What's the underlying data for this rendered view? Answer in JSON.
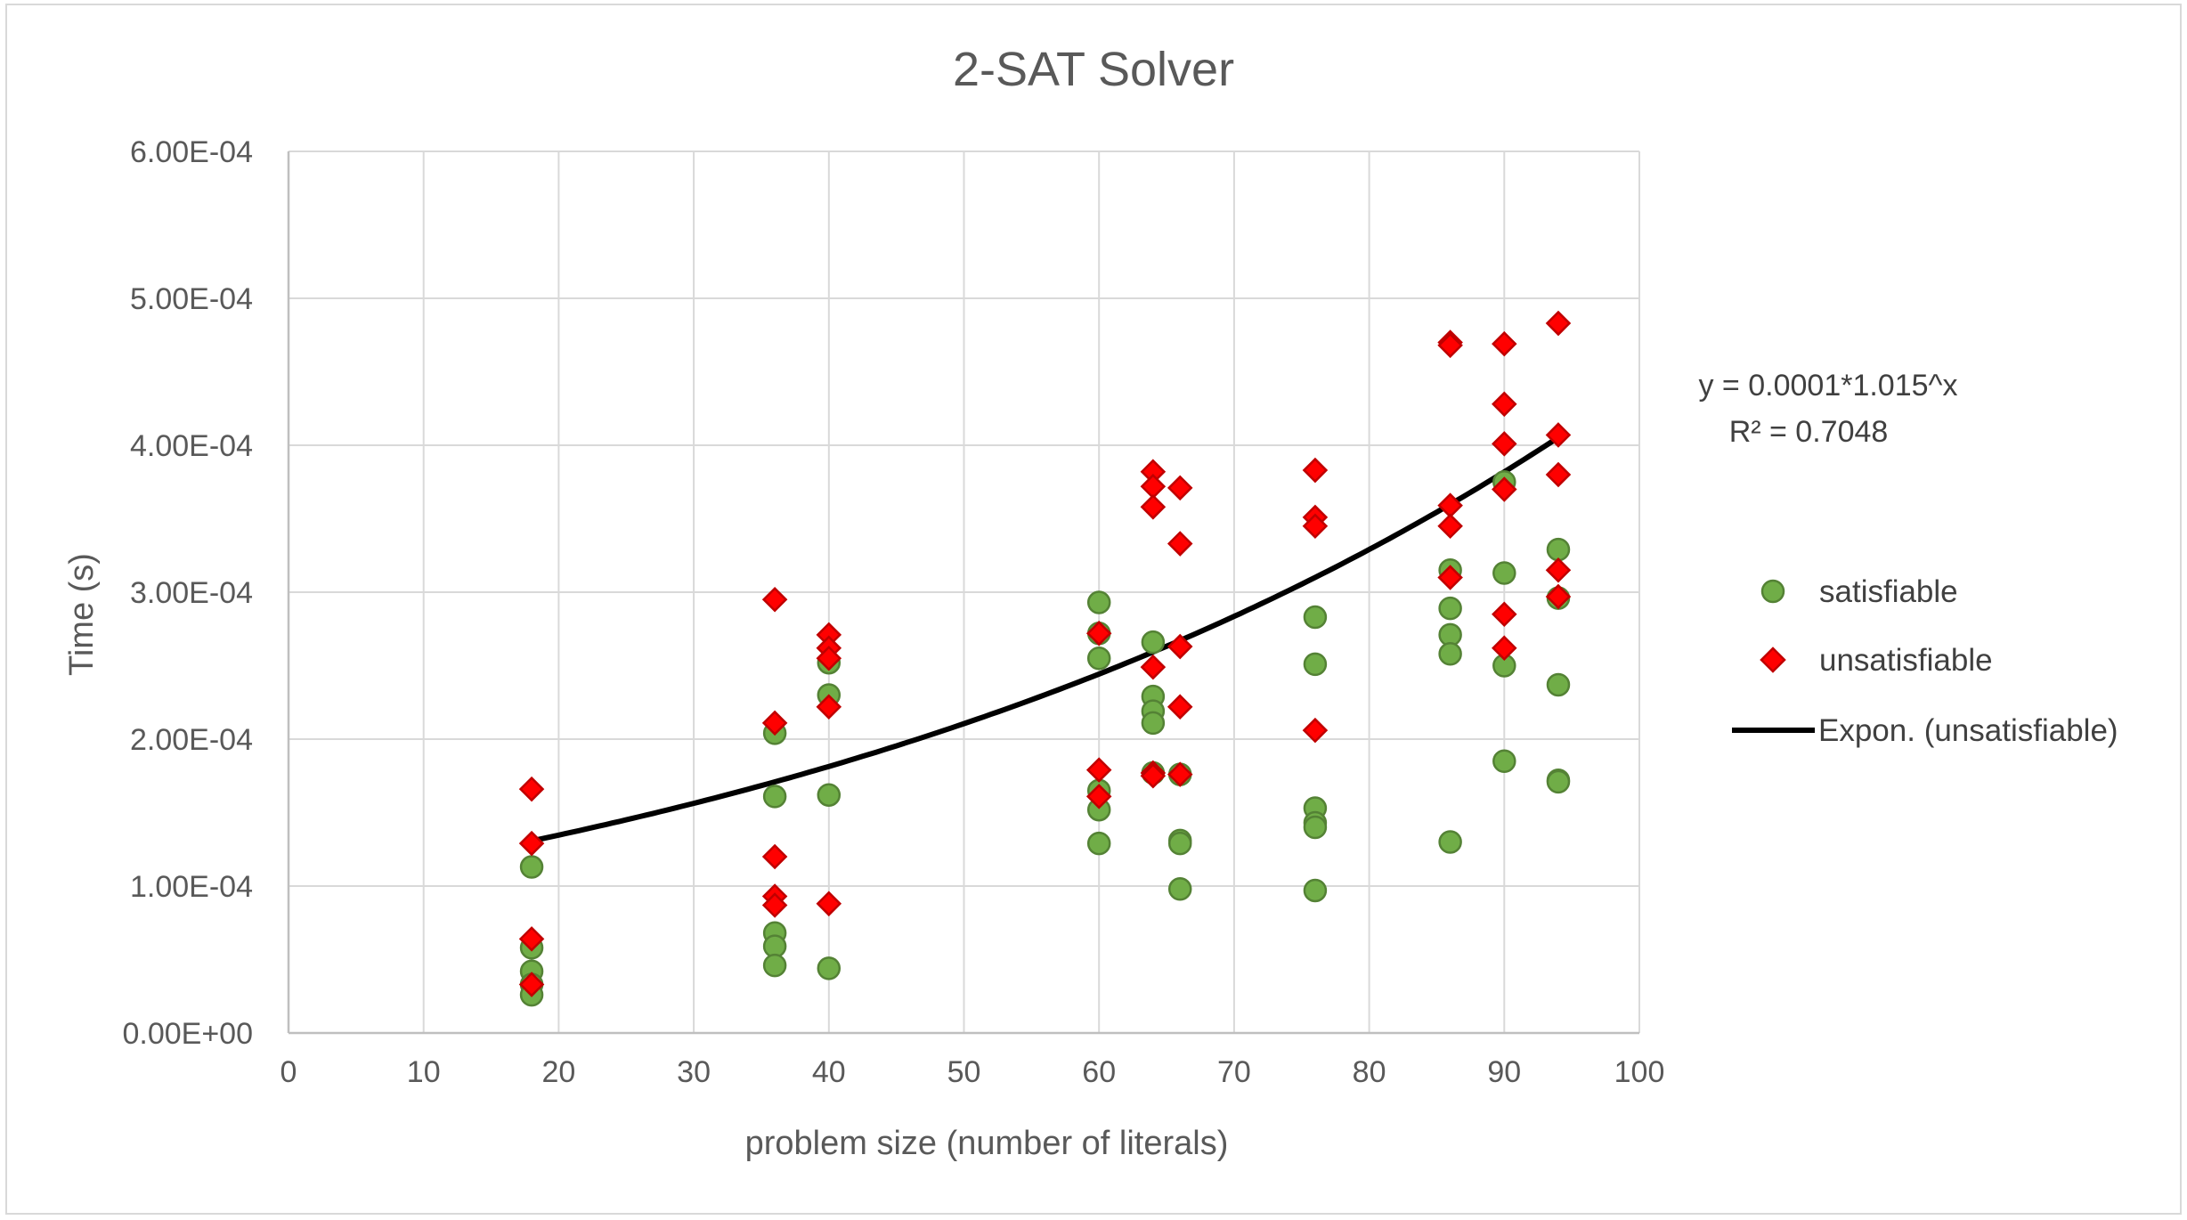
{
  "chart_data": {
    "type": "scatter",
    "title": "2-SAT Solver",
    "xlabel": "problem size (number of literals)",
    "ylabel": "Time (s)",
    "xlim": [
      0,
      100
    ],
    "ylim": [
      0,
      0.0006
    ],
    "x_ticks": [
      0,
      10,
      20,
      30,
      40,
      50,
      60,
      70,
      80,
      90,
      100
    ],
    "x_tick_labels": [
      "0",
      "10",
      "20",
      "30",
      "40",
      "50",
      "60",
      "70",
      "80",
      "90",
      "100"
    ],
    "y_ticks": [
      0,
      0.0001,
      0.0002,
      0.0003,
      0.0004,
      0.0005,
      0.0006
    ],
    "y_tick_labels": [
      "0.00E+00",
      "1.00E-04",
      "2.00E-04",
      "3.00E-04",
      "4.00E-04",
      "5.00E-04",
      "6.00E-04"
    ],
    "grid": true,
    "legend_position": "right",
    "series": [
      {
        "name": "satisfiable",
        "marker": "circle",
        "color": "#70ad47",
        "edge_color": "#548235",
        "points": [
          [
            18,
            0.000113
          ],
          [
            18,
            5.8e-05
          ],
          [
            18,
            4.2e-05
          ],
          [
            18,
            3.3e-05
          ],
          [
            18,
            2.6e-05
          ],
          [
            36,
            0.000204
          ],
          [
            36,
            0.000161
          ],
          [
            36,
            6.8e-05
          ],
          [
            36,
            5.9e-05
          ],
          [
            36,
            4.6e-05
          ],
          [
            40,
            0.000252
          ],
          [
            40,
            0.00023
          ],
          [
            40,
            0.000162
          ],
          [
            40,
            4.4e-05
          ],
          [
            60,
            0.000293
          ],
          [
            60,
            0.000272
          ],
          [
            60,
            0.000255
          ],
          [
            60,
            0.000165
          ],
          [
            60,
            0.000152
          ],
          [
            60,
            0.000129
          ],
          [
            64,
            0.000266
          ],
          [
            64,
            0.000229
          ],
          [
            64,
            0.000219
          ],
          [
            64,
            0.000211
          ],
          [
            64,
            0.000177
          ],
          [
            66,
            0.000176
          ],
          [
            66,
            0.000131
          ],
          [
            66,
            0.000129
          ],
          [
            66,
            9.8e-05
          ],
          [
            76,
            0.000283
          ],
          [
            76,
            0.000251
          ],
          [
            76,
            0.000153
          ],
          [
            76,
            0.000143
          ],
          [
            76,
            0.00014
          ],
          [
            76,
            9.7e-05
          ],
          [
            86,
            0.000315
          ],
          [
            86,
            0.000289
          ],
          [
            86,
            0.000271
          ],
          [
            86,
            0.000258
          ],
          [
            86,
            0.00013
          ],
          [
            90,
            0.000375
          ],
          [
            90,
            0.000313
          ],
          [
            90,
            0.00025
          ],
          [
            90,
            0.000185
          ],
          [
            94,
            0.000329
          ],
          [
            94,
            0.000296
          ],
          [
            94,
            0.000237
          ],
          [
            94,
            0.000172
          ],
          [
            94,
            0.000171
          ]
        ]
      },
      {
        "name": "unsatisfiable",
        "marker": "diamond",
        "color": "#ff0000",
        "edge_color": "#c00000",
        "points": [
          [
            18,
            0.000166
          ],
          [
            18,
            0.000129
          ],
          [
            18,
            6.4e-05
          ],
          [
            18,
            3.3e-05
          ],
          [
            36,
            0.000295
          ],
          [
            36,
            0.000211
          ],
          [
            36,
            0.00012
          ],
          [
            36,
            9.3e-05
          ],
          [
            36,
            8.7e-05
          ],
          [
            40,
            0.000271
          ],
          [
            40,
            0.000262
          ],
          [
            40,
            0.000255
          ],
          [
            40,
            0.000222
          ],
          [
            40,
            8.8e-05
          ],
          [
            60,
            0.000272
          ],
          [
            60,
            0.000179
          ],
          [
            60,
            0.000161
          ],
          [
            64,
            0.000382
          ],
          [
            64,
            0.000372
          ],
          [
            64,
            0.000358
          ],
          [
            64,
            0.000249
          ],
          [
            64,
            0.000177
          ],
          [
            64,
            0.000175
          ],
          [
            66,
            0.000371
          ],
          [
            66,
            0.000333
          ],
          [
            66,
            0.000263
          ],
          [
            66,
            0.000222
          ],
          [
            66,
            0.000176
          ],
          [
            76,
            0.000383
          ],
          [
            76,
            0.000351
          ],
          [
            76,
            0.000345
          ],
          [
            76,
            0.000206
          ],
          [
            86,
            0.00047
          ],
          [
            86,
            0.000468
          ],
          [
            86,
            0.000359
          ],
          [
            86,
            0.000345
          ],
          [
            86,
            0.00031
          ],
          [
            90,
            0.000469
          ],
          [
            90,
            0.000428
          ],
          [
            90,
            0.000401
          ],
          [
            90,
            0.00037
          ],
          [
            90,
            0.000285
          ],
          [
            90,
            0.000262
          ],
          [
            94,
            0.000483
          ],
          [
            94,
            0.000407
          ],
          [
            94,
            0.00038
          ],
          [
            94,
            0.000315
          ],
          [
            94,
            0.000297
          ]
        ]
      }
    ],
    "trendline": {
      "name": "Expon. (unsatisfiable)",
      "type": "exponential",
      "a": 0.0001,
      "b": 1.015,
      "x_range": [
        18,
        94
      ],
      "color": "#000000",
      "equation_label": "y = 0.0001*1.015^x",
      "r_squared_label": "R² = 0.7048"
    }
  }
}
